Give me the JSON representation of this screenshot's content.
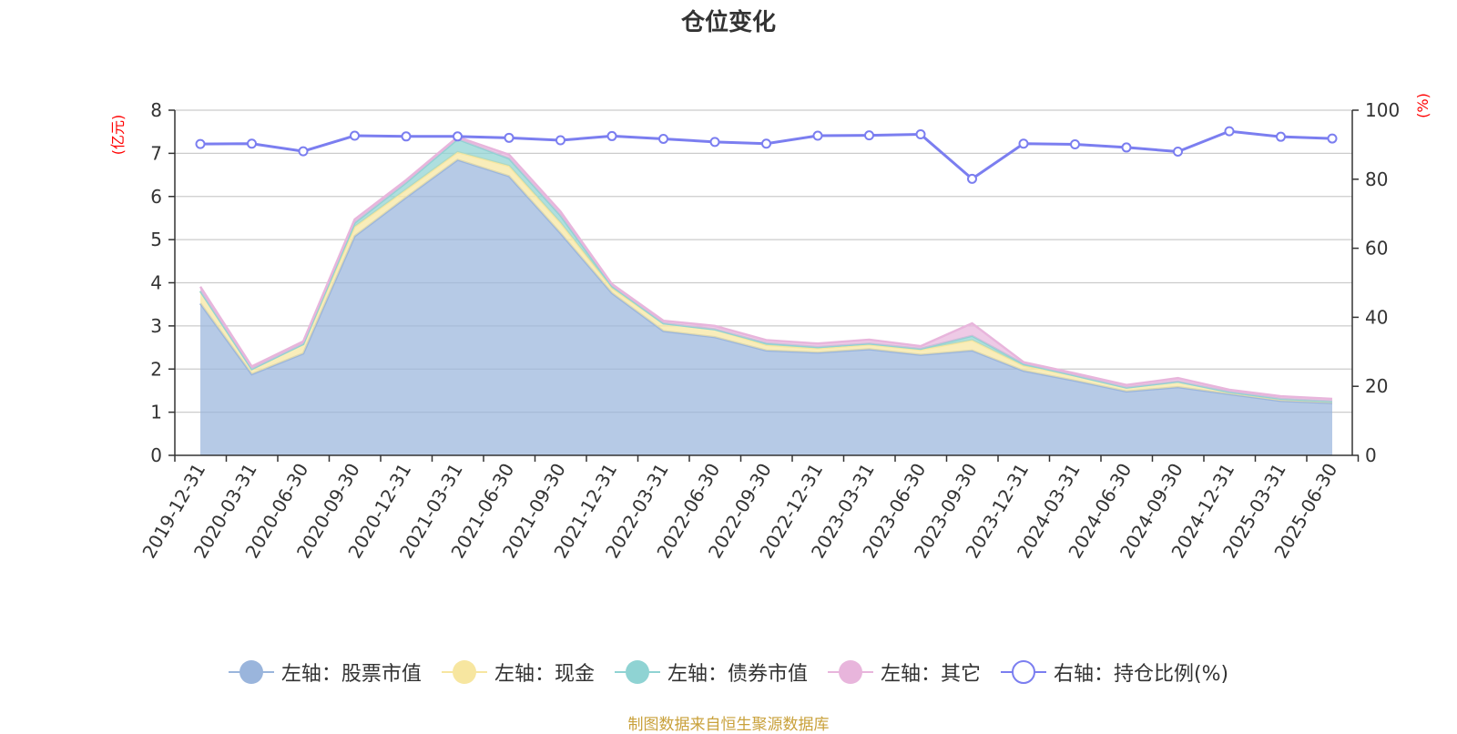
{
  "title": "仓位变化",
  "left_unit": "(亿元)",
  "right_unit": "(%)",
  "source_note": "制图数据来自恒生聚源数据库",
  "legend": [
    {
      "label": "左轴：股票市值",
      "color": "#9ab5dc",
      "style": "filled"
    },
    {
      "label": "左轴：现金",
      "color": "#f7e6a0",
      "style": "filled"
    },
    {
      "label": "左轴：债券市值",
      "color": "#8fd3d3",
      "style": "filled"
    },
    {
      "label": "左轴：其它",
      "color": "#e8b5dc",
      "style": "filled"
    },
    {
      "label": "右轴：持仓比例(%)",
      "color": "#7b7ef0",
      "style": "hollow"
    }
  ],
  "chart_data": {
    "type": "area",
    "stacked": true,
    "categories": [
      "2019-12-31",
      "2020-03-31",
      "2020-06-30",
      "2020-09-30",
      "2020-12-31",
      "2021-03-31",
      "2021-06-30",
      "2021-09-30",
      "2021-12-31",
      "2022-03-31",
      "2022-06-30",
      "2022-09-30",
      "2022-12-31",
      "2023-03-31",
      "2023-06-30",
      "2023-09-30",
      "2023-12-31",
      "2024-03-31",
      "2024-06-30",
      "2024-09-30",
      "2024-12-31",
      "2025-03-31",
      "2025-06-30"
    ],
    "y_left": {
      "ticks": [
        0,
        1,
        2,
        3,
        4,
        5,
        6,
        7,
        8
      ],
      "ylim": [
        0,
        8
      ]
    },
    "y_right": {
      "ticks": [
        0,
        20,
        40,
        60,
        80,
        100
      ],
      "ylim": [
        0,
        100
      ]
    },
    "series": [
      {
        "name": "左轴：股票市值",
        "axis": "left",
        "color": "#9ab5dc",
        "values": [
          3.52,
          1.88,
          2.36,
          5.08,
          5.98,
          6.85,
          6.47,
          5.15,
          3.76,
          2.88,
          2.74,
          2.43,
          2.38,
          2.46,
          2.33,
          2.43,
          1.96,
          1.73,
          1.48,
          1.58,
          1.42,
          1.26,
          1.21
        ]
      },
      {
        "name": "左轴：现金",
        "axis": "left",
        "color": "#f7e6a0",
        "values": [
          0.28,
          0.12,
          0.22,
          0.22,
          0.18,
          0.18,
          0.24,
          0.24,
          0.12,
          0.18,
          0.18,
          0.13,
          0.1,
          0.11,
          0.12,
          0.24,
          0.12,
          0.12,
          0.09,
          0.13,
          0.05,
          0.05,
          0.04
        ]
      },
      {
        "name": "左轴：债券市值",
        "axis": "left",
        "color": "#8fd3d3",
        "values": [
          0.01,
          0.0,
          0.0,
          0.09,
          0.16,
          0.3,
          0.17,
          0.17,
          0.04,
          0.0,
          0.0,
          0.04,
          0.03,
          0.02,
          0.02,
          0.1,
          0.04,
          0.0,
          0.0,
          0.0,
          0.0,
          0.0,
          0.0
        ]
      },
      {
        "name": "左轴：其它",
        "axis": "left",
        "color": "#e8b5dc",
        "values": [
          0.1,
          0.06,
          0.06,
          0.08,
          0.06,
          0.05,
          0.09,
          0.09,
          0.05,
          0.06,
          0.08,
          0.07,
          0.08,
          0.09,
          0.06,
          0.29,
          0.04,
          0.05,
          0.06,
          0.08,
          0.05,
          0.06,
          0.06
        ]
      },
      {
        "name": "右轴：持仓比例(%)",
        "axis": "right",
        "color": "#7b7ef0",
        "type": "line",
        "values": [
          90.2,
          90.3,
          88.1,
          92.6,
          92.4,
          92.4,
          92.0,
          91.3,
          92.5,
          91.7,
          90.8,
          90.3,
          92.6,
          92.7,
          93.0,
          80.1,
          90.3,
          90.1,
          89.2,
          88.0,
          93.9,
          92.3,
          91.8
        ]
      }
    ],
    "grid": true,
    "legend_position": "bottom"
  }
}
